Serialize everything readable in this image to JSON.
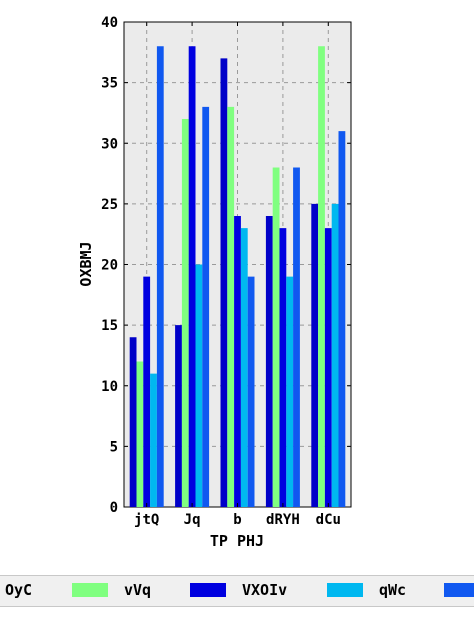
{
  "chart_data": {
    "type": "bar",
    "xlabel": "TP PHJ",
    "ylabel": "OXBMJ",
    "ylim": [
      0,
      40
    ],
    "yticks": [
      0,
      5,
      10,
      15,
      20,
      25,
      30,
      35,
      40
    ],
    "categories": [
      "jtQ",
      "Jq",
      "b",
      "dRYH",
      "dCu"
    ],
    "grid": true,
    "legend_position": "bottom",
    "series": [
      {
        "name": "OyC",
        "color": "#0000c8",
        "values": [
          14,
          15,
          37,
          24,
          25
        ]
      },
      {
        "name": "vVq",
        "color": "#80ff80",
        "values": [
          12,
          32,
          33,
          28,
          38
        ]
      },
      {
        "name": "VXOIv",
        "color": "#0000e0",
        "values": [
          19,
          38,
          24,
          23,
          23
        ]
      },
      {
        "name": "qWc",
        "color": "#00b8f0",
        "values": [
          11,
          20,
          23,
          19,
          25
        ]
      },
      {
        "name": "",
        "color": "#1058f0",
        "values": [
          38,
          33,
          19,
          28,
          31
        ]
      }
    ]
  }
}
